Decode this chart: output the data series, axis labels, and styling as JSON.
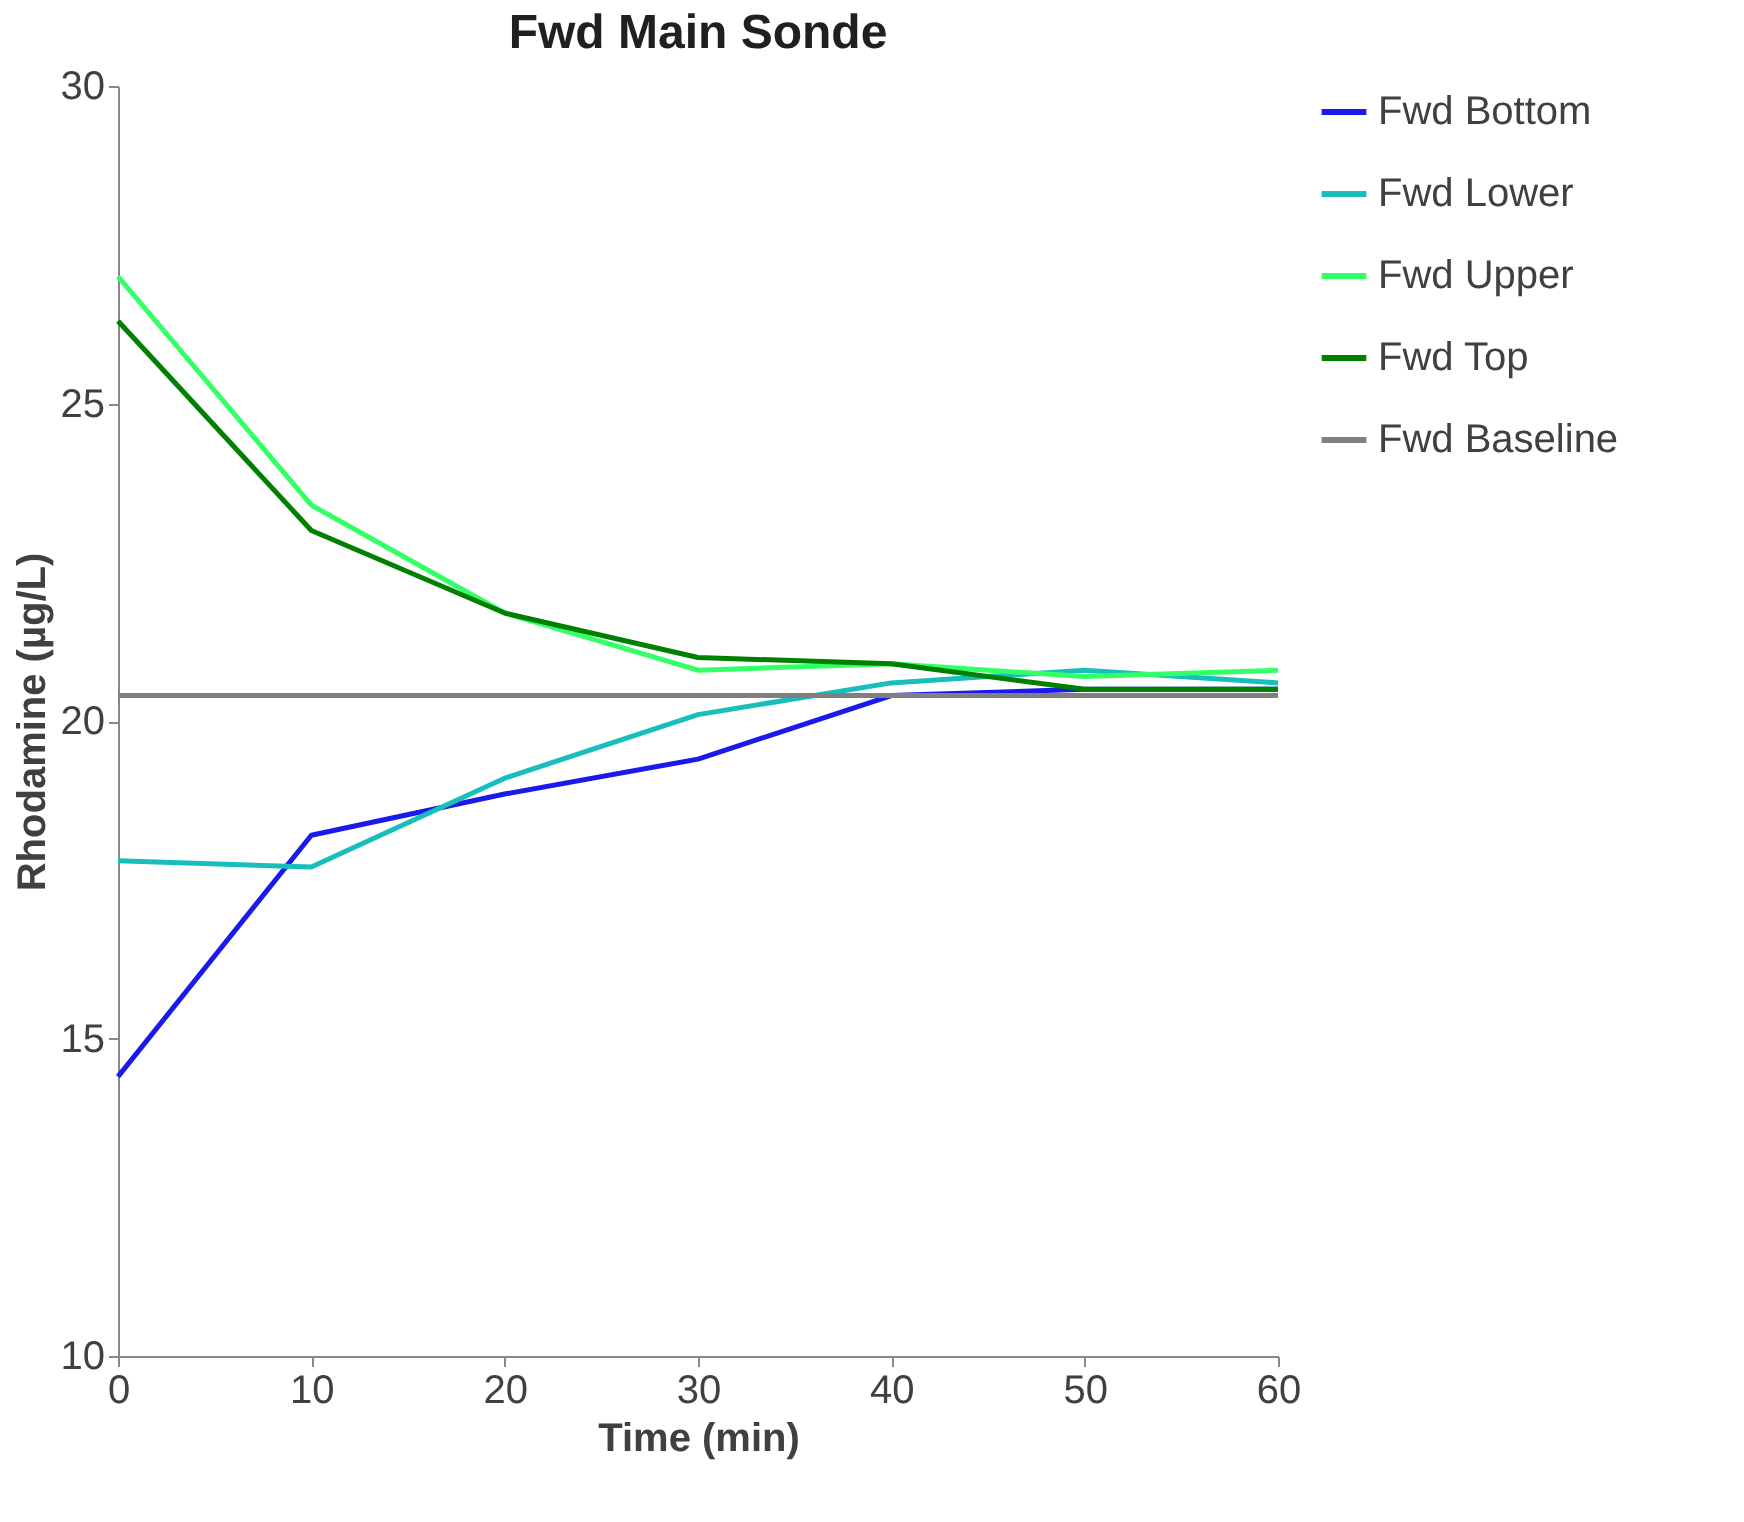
{
  "chart_data": {
    "type": "line",
    "title": "Fwd Main Sonde",
    "xlabel": "Time (min)",
    "ylabel": "Rhodamine (µg/L)",
    "x": [
      0,
      10,
      20,
      30,
      40,
      50,
      60
    ],
    "xlim": [
      0,
      60
    ],
    "xticks": [
      0,
      10,
      20,
      30,
      40,
      50,
      60
    ],
    "ylim": [
      10,
      30
    ],
    "yticks": [
      10,
      15,
      20,
      25,
      30
    ],
    "grid": false,
    "legend": "right",
    "marker": "none",
    "line_style": "solid",
    "series": [
      {
        "name": "Fwd Bottom",
        "color": "#1a1aeb",
        "values": [
          14.4,
          18.2,
          18.85,
          19.4,
          20.4,
          20.5,
          20.5
        ]
      },
      {
        "name": "Fwd Lower",
        "color": "#17bebb",
        "values": [
          17.8,
          17.7,
          19.1,
          20.1,
          20.6,
          20.8,
          20.6
        ]
      },
      {
        "name": "Fwd Upper",
        "color": "#33ff66",
        "values": [
          27.0,
          23.4,
          21.7,
          20.8,
          20.9,
          20.7,
          20.8
        ]
      },
      {
        "name": "Fwd Top",
        "color": "#008000",
        "values": [
          26.3,
          23.0,
          21.7,
          21.0,
          20.9,
          20.5,
          20.5
        ]
      },
      {
        "name": "Fwd Baseline",
        "color": "#808080",
        "values": [
          20.4,
          20.4,
          20.4,
          20.4,
          20.4,
          20.4,
          20.4
        ]
      }
    ]
  }
}
